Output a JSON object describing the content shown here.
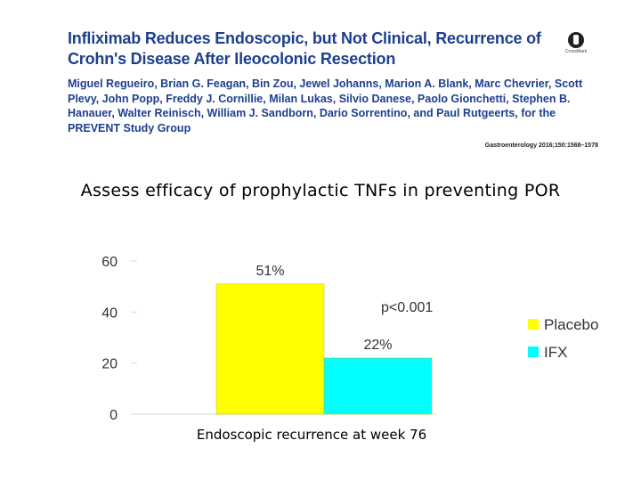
{
  "paper": {
    "title": "Infliximab Reduces Endoscopic, but Not Clinical, Recurrence of Crohn's Disease After Ileocolonic Resection",
    "authors": "Miguel Regueiro, Brian G. Feagan, Bin Zou, Jewel Johanns, Marion A. Blank, Marc Chevrier, Scott Plevy, John Popp, Freddy J. Cornillie, Milan Lukas, Silvio Danese, Paolo Gionchetti, Stephen B. Hanauer, Walter Reinisch, William J. Sandborn, Dario Sorrentino, and Paul Rutgeerts, for the PREVENT Study Group",
    "citation": "Gastroenterology 2016;150:1568–1578",
    "crossmark_label": "CrossMark"
  },
  "aim": "Assess efficacy of prophylactic TNFs in preventing POR",
  "chart_data": {
    "type": "bar",
    "categories": [
      "Endoscopic recurrence at week 76"
    ],
    "series": [
      {
        "name": "Placebo",
        "values": [
          51
        ],
        "color": "#ffff00"
      },
      {
        "name": "IFX",
        "values": [
          22
        ],
        "color": "#00ffff"
      }
    ],
    "data_labels": [
      "51%",
      "22%"
    ],
    "annotation": "p<0.001",
    "xlabel": "Endoscopic recurrence at week 76",
    "ylabel": "",
    "ylim": [
      0,
      60
    ],
    "yticks": [
      0,
      20,
      40,
      60
    ],
    "legend_position": "right",
    "grid": false
  }
}
